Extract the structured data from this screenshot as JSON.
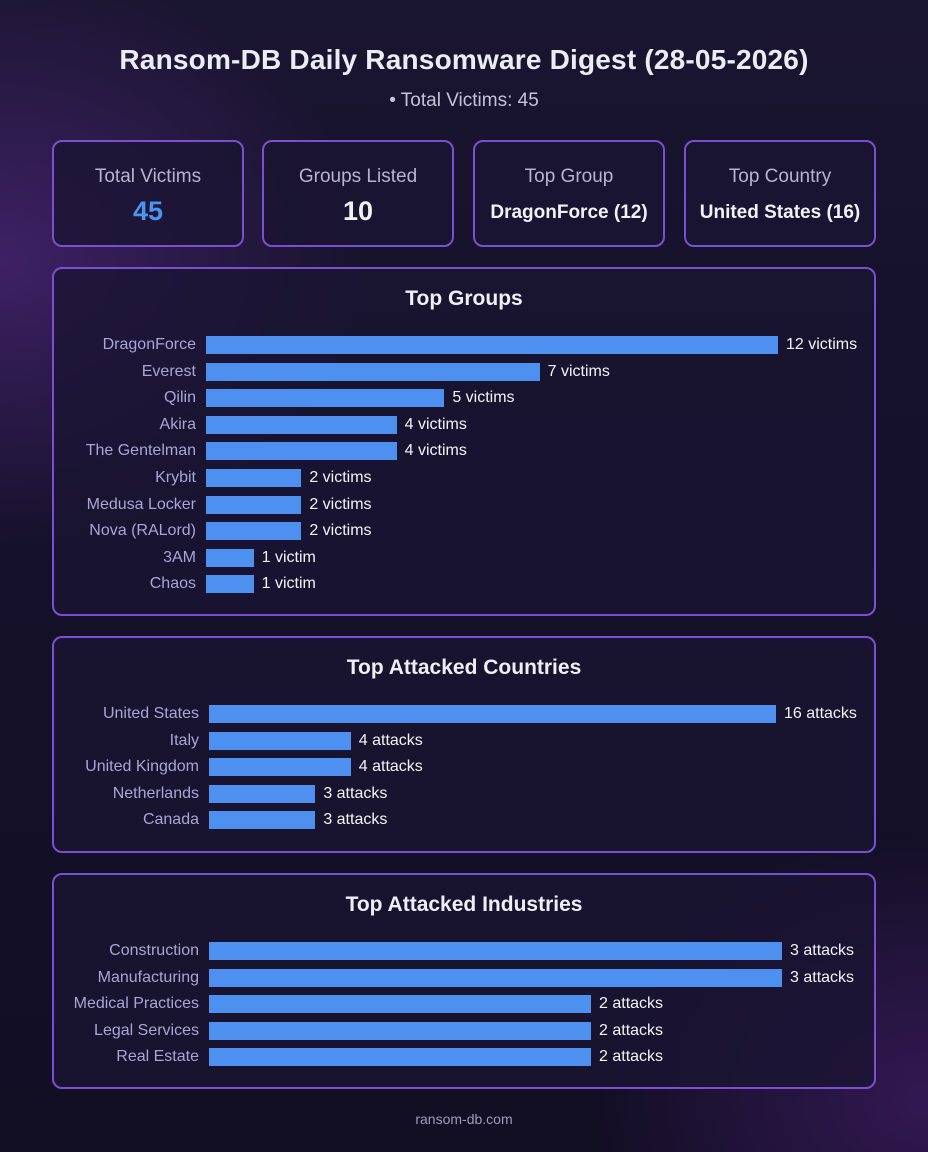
{
  "header": {
    "title": "Ransom-DB Daily Ransomware Digest (28-05-2026)",
    "subtitle": "• Total Victims: 45"
  },
  "stats": [
    {
      "label": "Total Victims",
      "value": "45",
      "accent": "#4d94ef"
    },
    {
      "label": "Groups Listed",
      "value": "10"
    },
    {
      "label": "Top Group",
      "value": "DragonForce (12)"
    },
    {
      "label": "Top Country",
      "value": "United States (16)"
    }
  ],
  "bar_color": "#4d90f0",
  "border_color": "#7c4fd1",
  "chart_data": [
    {
      "type": "bar",
      "orientation": "horizontal",
      "title": "Top Groups",
      "xlabel": "",
      "ylabel": "",
      "xlim": [
        0,
        12
      ],
      "grid": false,
      "categories": [
        "DragonForce",
        "Everest",
        "Qilin",
        "Akira",
        "The Gentelman",
        "Krybit",
        "Medusa Locker",
        "Nova (RALord)",
        "3AM",
        "Chaos"
      ],
      "values": [
        12,
        7,
        5,
        4,
        4,
        2,
        2,
        2,
        1,
        1
      ],
      "data_labels": [
        "12 victims",
        "7 victims",
        "5 victims",
        "4 victims",
        "4 victims",
        "2 victims",
        "2 victims",
        "2 victims",
        "1 victim",
        "1 victim"
      ]
    },
    {
      "type": "bar",
      "orientation": "horizontal",
      "title": "Top Attacked Countries",
      "xlabel": "",
      "ylabel": "",
      "xlim": [
        0,
        16
      ],
      "grid": false,
      "categories": [
        "United States",
        "Italy",
        "United Kingdom",
        "Netherlands",
        "Canada"
      ],
      "values": [
        16,
        4,
        4,
        3,
        3
      ],
      "data_labels": [
        "16 attacks",
        "4 attacks",
        "4 attacks",
        "3 attacks",
        "3 attacks"
      ]
    },
    {
      "type": "bar",
      "orientation": "horizontal",
      "title": "Top Attacked Industries",
      "xlabel": "",
      "ylabel": "",
      "xlim": [
        0,
        3
      ],
      "grid": false,
      "categories": [
        "Construction",
        "Manufacturing",
        "Medical Practices",
        "Legal Services",
        "Real Estate"
      ],
      "values": [
        3,
        3,
        2,
        2,
        2
      ],
      "data_labels": [
        "3 attacks",
        "3 attacks",
        "2 attacks",
        "2 attacks",
        "2 attacks"
      ]
    }
  ],
  "footer": "ransom-db.com"
}
